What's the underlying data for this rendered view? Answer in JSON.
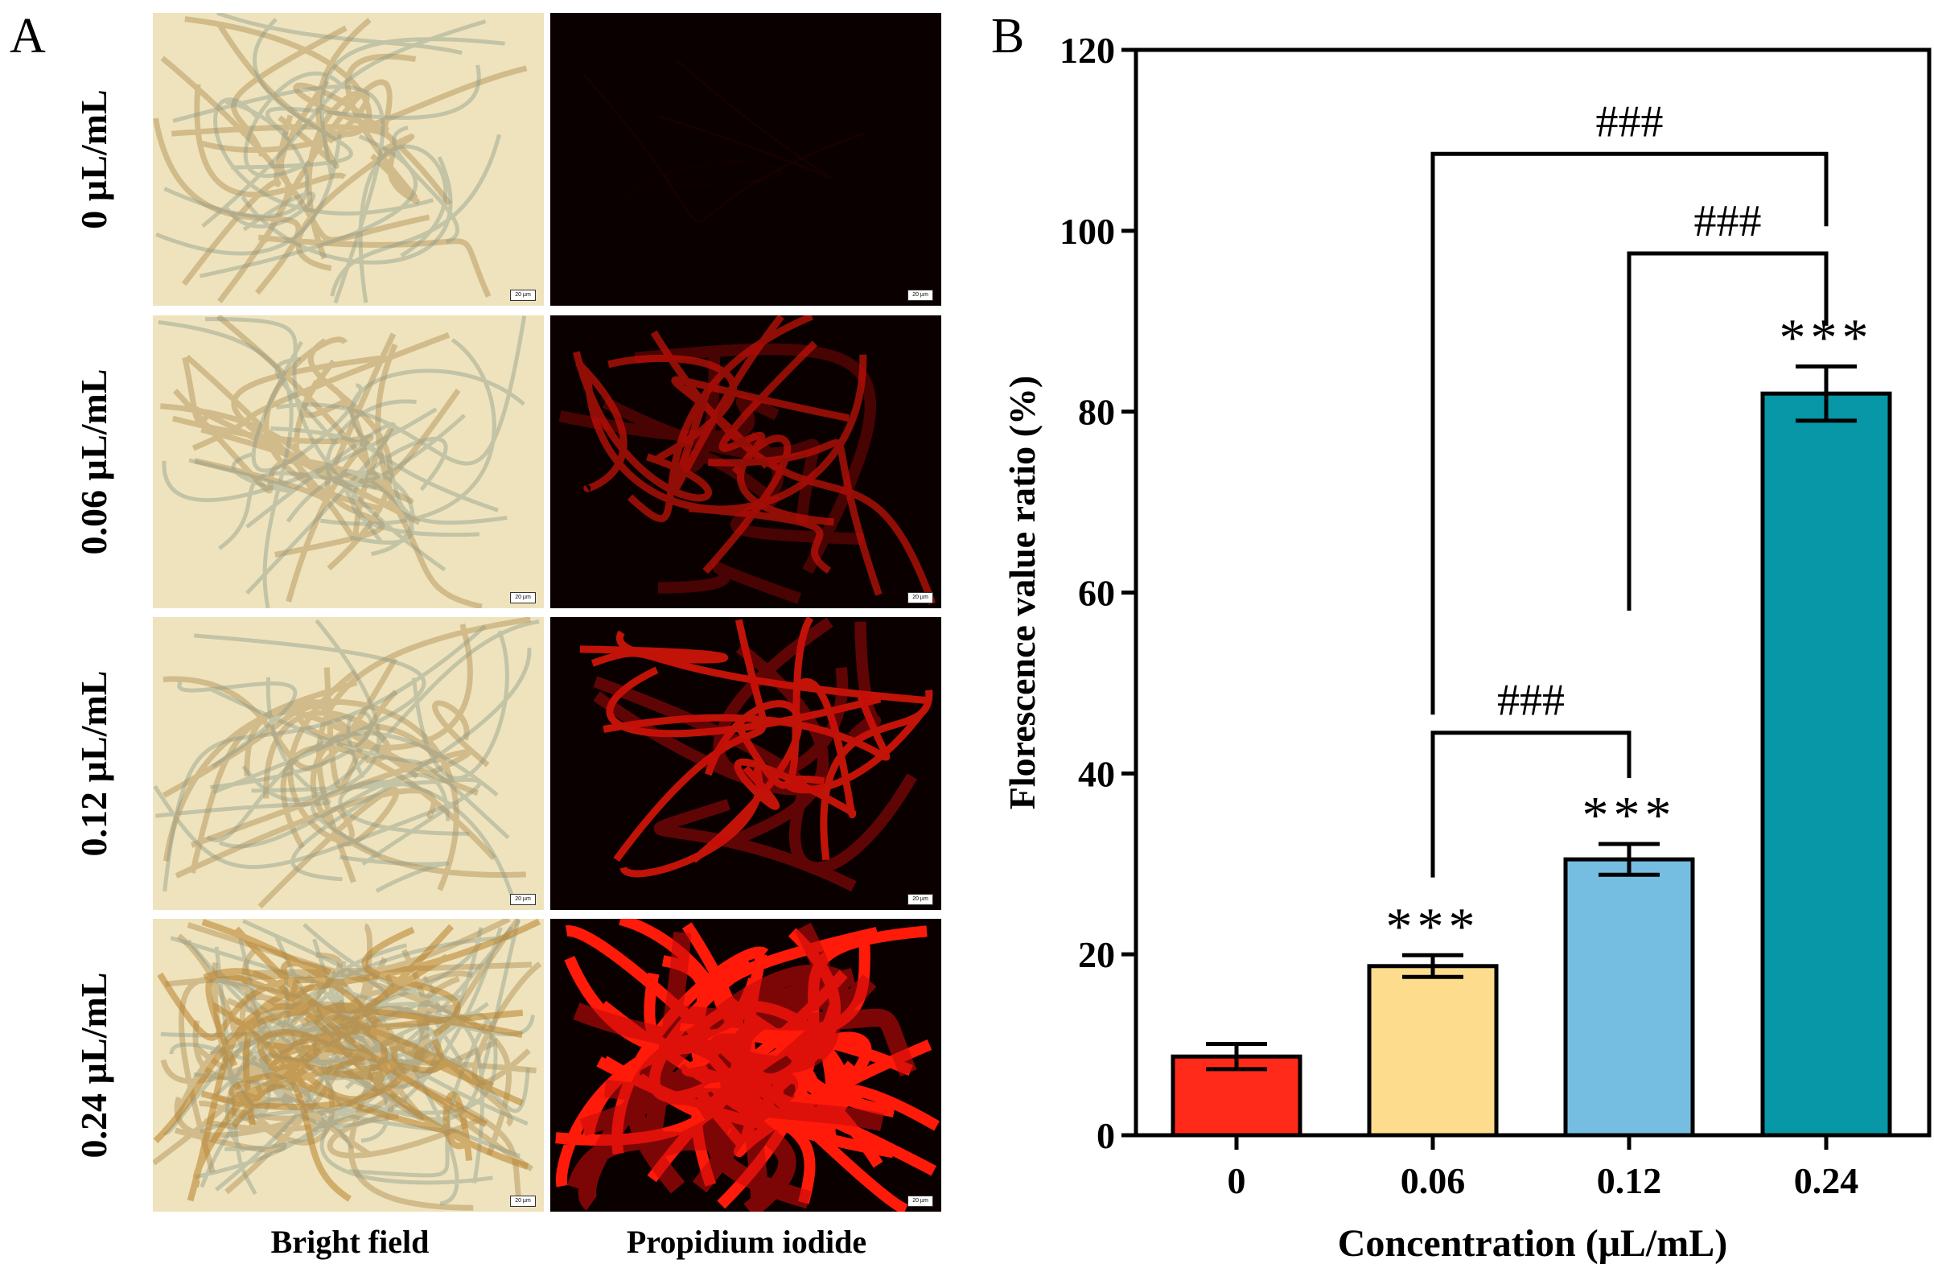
{
  "panel_a": {
    "letter": "A",
    "rows": [
      {
        "label": "0 µL/mL",
        "scale": "20 µm"
      },
      {
        "label": "0.06 µL/mL",
        "scale": "20 µm"
      },
      {
        "label": "0.12 µL/mL",
        "scale": "20 µm"
      },
      {
        "label": "0.24 µL/mL",
        "scale": "20 µm"
      }
    ],
    "columns": [
      "Bright field",
      "Propidium iodide"
    ]
  },
  "panel_b": {
    "letter": "B"
  },
  "chart_data": {
    "type": "bar",
    "title": "",
    "categories": [
      "0",
      "0.06",
      "0.12",
      "0.24"
    ],
    "values": [
      8.7,
      18.7,
      30.5,
      82.0
    ],
    "errors": [
      1.4,
      1.2,
      1.7,
      3.0
    ],
    "colors": [
      "#ff2a1a",
      "#fddc8e",
      "#76bde2",
      "#0797a6"
    ],
    "xlabel": "Concentration (μL/mL)",
    "ylabel": "Florescence value ratio (%)",
    "ylim": [
      0,
      120
    ],
    "yticks": [
      "0",
      "20",
      "40",
      "60",
      "80",
      "100",
      "120"
    ],
    "star_labels": [
      "",
      "***",
      "***",
      "***"
    ],
    "brackets": [
      {
        "from": 1,
        "to": 2,
        "label": "###"
      },
      {
        "from": 2,
        "to": 3,
        "label": "###"
      },
      {
        "from": 1,
        "to": 3,
        "label": "###"
      }
    ],
    "grid": false
  }
}
